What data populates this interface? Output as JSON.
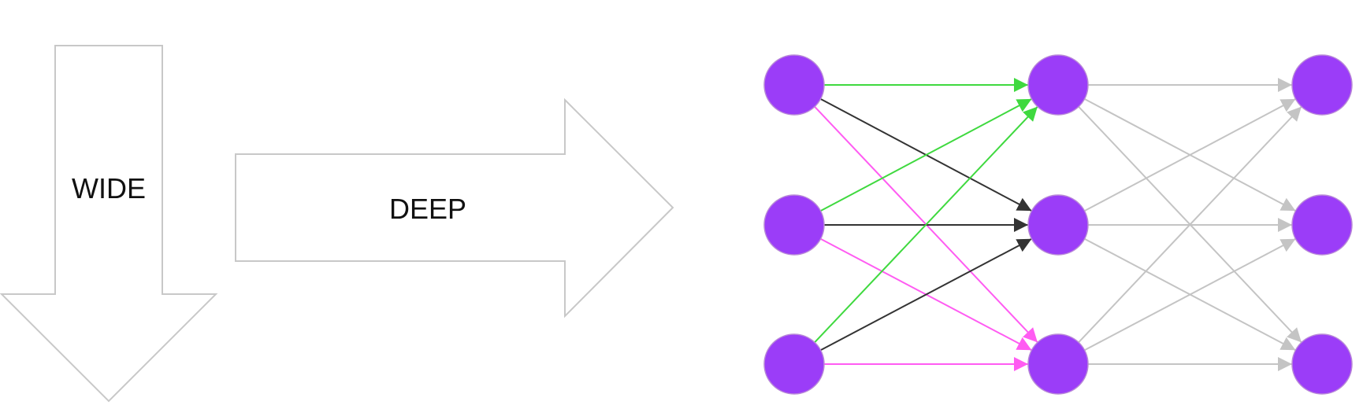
{
  "labels": {
    "wide": "WIDE",
    "deep": "DEEP"
  },
  "network": {
    "layers": [
      3,
      3,
      3
    ],
    "colors": {
      "node": "#9b3df8",
      "edge_to_top": "#3fd93f",
      "edge_to_middle": "#333333",
      "edge_to_bottom": "#ff5cf2",
      "edge_layer2": "#c4c4c4",
      "arrow_outline": "#c8c8c8"
    }
  }
}
